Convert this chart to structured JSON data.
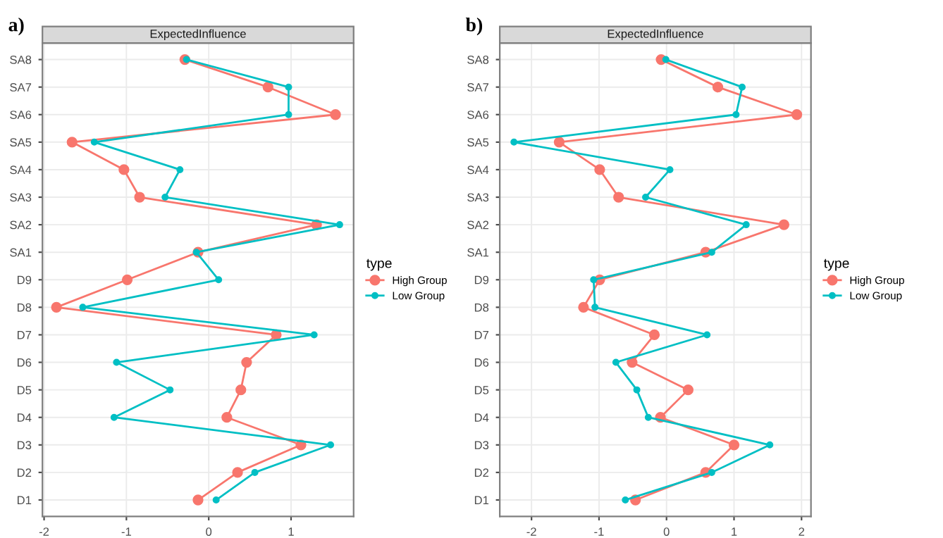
{
  "chart_data": [
    {
      "type": "line",
      "orientation": "horizontal",
      "title": "ExpectedInfluence",
      "annotations": [
        "a)"
      ],
      "legend_title": "type",
      "legend": "right",
      "grid": true,
      "marker": "circle",
      "line_style": "solid",
      "categories": [
        "SA8",
        "SA7",
        "SA6",
        "SA5",
        "SA4",
        "SA3",
        "SA2",
        "SA1",
        "D9",
        "D8",
        "D7",
        "D6",
        "D5",
        "D4",
        "D3",
        "D2",
        "D1"
      ],
      "xlim": [
        -2.02,
        1.76
      ],
      "xticks": [
        -2,
        -1,
        0,
        1
      ],
      "series": [
        {
          "name": "High Group",
          "color": "#f8766d",
          "values": [
            -0.29,
            0.72,
            1.54,
            -1.66,
            -1.03,
            -0.84,
            1.31,
            -0.13,
            -0.99,
            -1.85,
            0.82,
            0.46,
            0.39,
            0.22,
            1.12,
            0.35,
            -0.13
          ]
        },
        {
          "name": "Low Group",
          "color": "#00bfc4",
          "values": [
            -0.27,
            0.97,
            0.97,
            -1.39,
            -0.35,
            -0.53,
            1.59,
            -0.15,
            0.12,
            -1.53,
            1.28,
            -1.12,
            -0.47,
            -1.15,
            1.48,
            0.56,
            0.09
          ]
        }
      ]
    },
    {
      "type": "line",
      "orientation": "horizontal",
      "title": "ExpectedInfluence",
      "annotations": [
        "b)"
      ],
      "legend_title": "type",
      "legend": "right",
      "grid": true,
      "marker": "circle",
      "line_style": "solid",
      "categories": [
        "SA8",
        "SA7",
        "SA6",
        "SA5",
        "SA4",
        "SA3",
        "SA2",
        "SA1",
        "D9",
        "D8",
        "D7",
        "D6",
        "D5",
        "D4",
        "D3",
        "D2",
        "D1"
      ],
      "xlim": [
        -2.47,
        2.14
      ],
      "xticks": [
        -2,
        -1,
        0,
        1,
        2
      ],
      "series": [
        {
          "name": "High Group",
          "color": "#f8766d",
          "values": [
            -0.08,
            0.76,
            1.93,
            -1.59,
            -0.99,
            -0.71,
            1.74,
            0.58,
            -0.99,
            -1.23,
            -0.18,
            -0.51,
            0.32,
            -0.09,
            1.0,
            0.58,
            -0.46
          ]
        },
        {
          "name": "Low Group",
          "color": "#00bfc4",
          "values": [
            -0.01,
            1.12,
            1.03,
            -2.26,
            0.05,
            -0.31,
            1.18,
            0.67,
            -1.08,
            -1.06,
            0.6,
            -0.75,
            -0.44,
            -0.27,
            1.53,
            0.67,
            -0.61
          ]
        }
      ]
    }
  ]
}
